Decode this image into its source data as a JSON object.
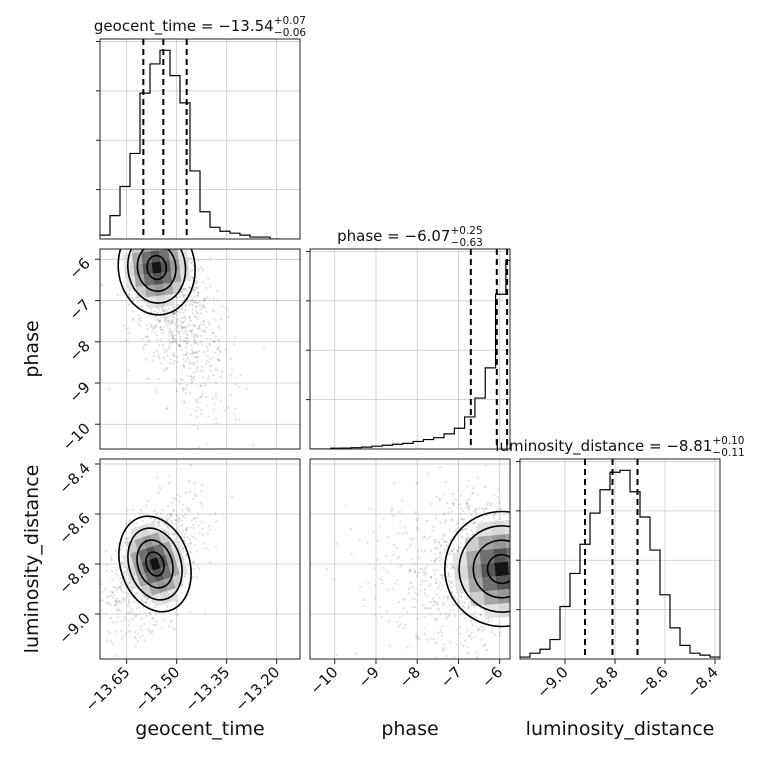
{
  "chart_data": {
    "type": "corner",
    "parameters": [
      "geocent_time",
      "phase",
      "luminosity_distance"
    ],
    "titles": [
      {
        "param": "geocent_time",
        "prefix": "geocent_time = ",
        "median": "−13.54",
        "plus": "+0.07",
        "minus": "−0.06"
      },
      {
        "param": "phase",
        "prefix": "phase = ",
        "median": "−6.07",
        "plus": "+0.25",
        "minus": "−0.63"
      },
      {
        "param": "luminosity_distance",
        "prefix": "luminosity_distance = ",
        "median": "−8.81",
        "plus": "+0.10",
        "minus": "−0.11"
      }
    ],
    "ranges": {
      "geocent_time": [
        -13.73,
        -13.13
      ],
      "phase": [
        -10.6,
        -5.75
      ],
      "luminosity_distance": [
        -9.18,
        -8.38
      ]
    },
    "ticks": {
      "geocent_time": {
        "values": [
          -13.65,
          -13.5,
          -13.35,
          -13.2
        ],
        "labels": [
          "−13.65",
          "−13.50",
          "−13.35",
          "−13.20"
        ]
      },
      "phase": {
        "values": [
          -10,
          -9,
          -8,
          -7,
          -6
        ],
        "labels": [
          "−10",
          "−9",
          "−8",
          "−7",
          "−6"
        ]
      },
      "luminosity_distance": {
        "values": [
          -9.0,
          -8.8,
          -8.6,
          -8.4
        ],
        "labels": [
          "−9.0",
          "−8.8",
          "−8.6",
          "−8.4"
        ]
      }
    },
    "quantiles": {
      "geocent_time": [
        -13.6,
        -13.54,
        -13.47
      ],
      "phase": [
        -6.7,
        -6.07,
        -5.82
      ],
      "luminosity_distance": [
        -8.92,
        -8.81,
        -8.71
      ]
    },
    "histograms": {
      "geocent_time": {
        "edges": [
          -13.73,
          -13.7,
          -13.67,
          -13.64,
          -13.61,
          -13.58,
          -13.55,
          -13.52,
          -13.49,
          -13.46,
          -13.43,
          -13.4,
          -13.37,
          -13.34,
          -13.31,
          -13.28,
          -13.25,
          -13.22,
          -13.19
        ],
        "counts": [
          2,
          12,
          27,
          44,
          75,
          90,
          97,
          84,
          70,
          35,
          14,
          6,
          4,
          3,
          2,
          1,
          1,
          0
        ]
      },
      "phase": {
        "edges": [
          -10.6,
          -10.35,
          -10.1,
          -9.85,
          -9.6,
          -9.35,
          -9.1,
          -8.85,
          -8.6,
          -8.35,
          -8.1,
          -7.85,
          -7.6,
          -7.35,
          -7.1,
          -6.85,
          -6.6,
          -6.35,
          -6.1,
          -5.85,
          -5.75
        ],
        "counts": [
          0,
          0,
          0.4,
          0.5,
          0.7,
          1,
          1.5,
          2,
          2.5,
          3,
          4,
          5,
          6,
          8,
          11,
          17,
          27,
          43,
          82,
          100
        ]
      },
      "luminosity_distance": {
        "edges": [
          -9.18,
          -9.14,
          -9.1,
          -9.06,
          -9.02,
          -8.98,
          -8.94,
          -8.9,
          -8.86,
          -8.82,
          -8.78,
          -8.74,
          -8.7,
          -8.66,
          -8.62,
          -8.58,
          -8.54,
          -8.5,
          -8.46,
          -8.42,
          -8.38
        ],
        "counts": [
          1,
          3,
          5,
          10,
          27,
          44,
          59,
          75,
          87,
          96,
          97,
          86,
          73,
          56,
          33,
          16,
          7,
          3,
          2,
          1
        ]
      }
    },
    "joint": [
      {
        "x": "geocent_time",
        "y": "phase",
        "cx": -13.56,
        "cy": -6.2,
        "sx": 0.05,
        "sy": 0.5,
        "rho": -0.45
      },
      {
        "x": "geocent_time",
        "y": "luminosity_distance",
        "cx": -13.565,
        "cy": -8.8,
        "sx": 0.045,
        "sy": 0.085,
        "rho": 0.5
      },
      {
        "x": "phase",
        "y": "luminosity_distance",
        "cx": -5.95,
        "cy": -8.82,
        "sx": 0.6,
        "sy": 0.1,
        "rho": 0.15
      }
    ],
    "grid": true
  }
}
